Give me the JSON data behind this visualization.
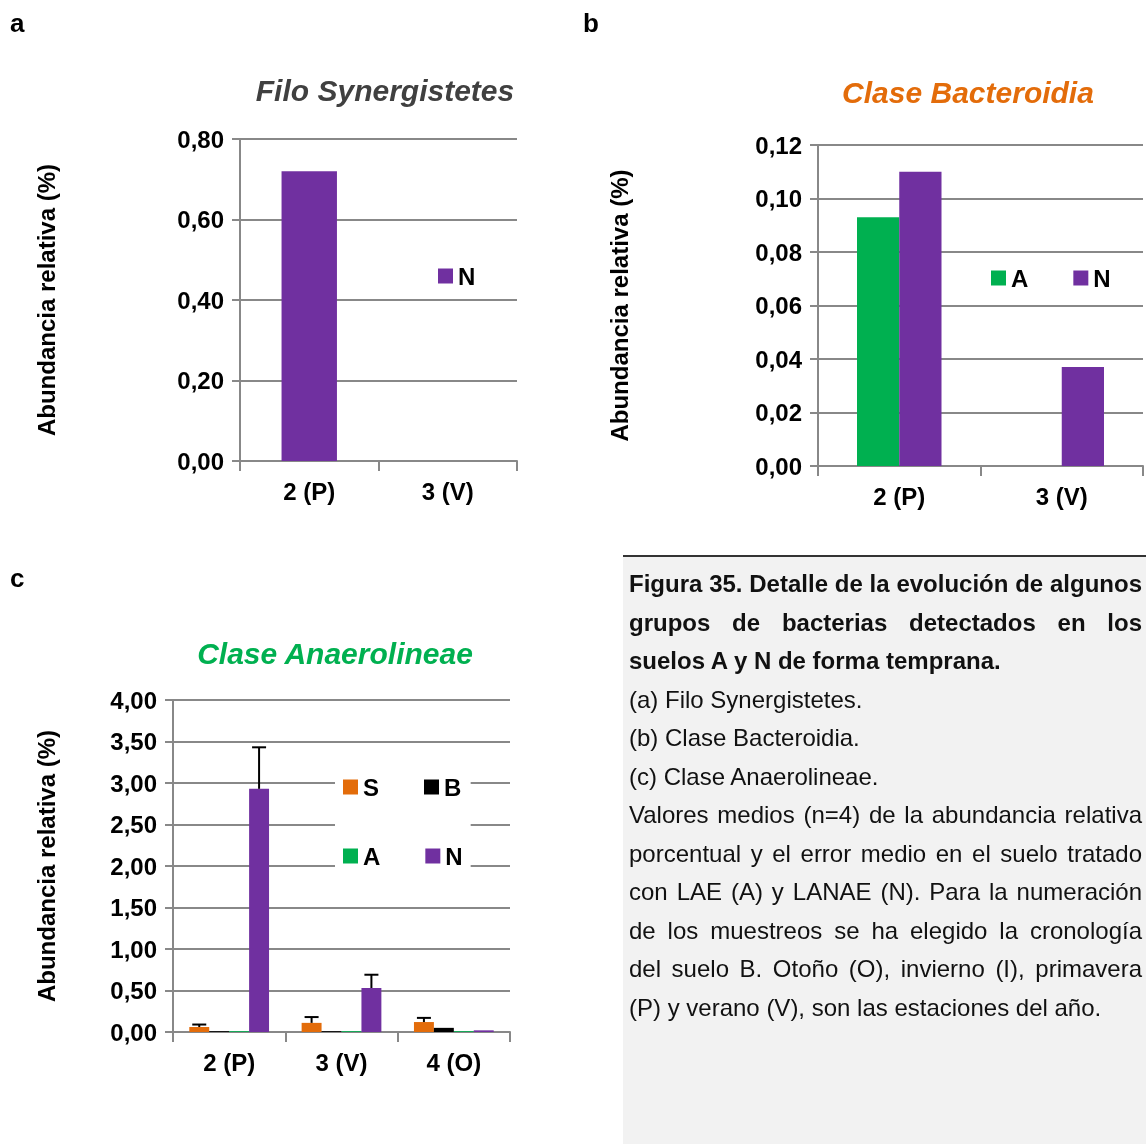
{
  "chart_data": [
    {
      "type": "bar",
      "title": "Filo Synergistetes",
      "ylabel": "Abundancia relativa (%)",
      "annotations": [
        "a"
      ],
      "categories": [
        "2 (P)",
        "3 (V)"
      ],
      "series": [
        {
          "name": "N",
          "color": "#7030a0",
          "values": [
            0.72,
            0
          ]
        }
      ],
      "ylim": [
        0,
        0.8
      ],
      "yticks": [
        {
          "value": 0,
          "label": "0,00"
        },
        {
          "value": 0.2,
          "label": "0,20"
        },
        {
          "value": 0.4,
          "label": "0,40"
        },
        {
          "value": 0.6,
          "label": "0,60"
        },
        {
          "value": 0.8,
          "label": "0,80"
        }
      ],
      "grid": "y",
      "legend": "right"
    },
    {
      "type": "bar",
      "title": "Clase Bacteroidia",
      "ylabel": "Abundancia relativa (%)",
      "annotations": [
        "b"
      ],
      "categories": [
        "2 (P)",
        "3 (V)"
      ],
      "series": [
        {
          "name": "A",
          "color": "#00b050",
          "values": [
            0.093,
            0
          ]
        },
        {
          "name": "N",
          "color": "#7030a0",
          "values": [
            0.11,
            0.037
          ]
        }
      ],
      "ylim": [
        0,
        0.12
      ],
      "yticks": [
        {
          "value": 0,
          "label": "0,00"
        },
        {
          "value": 0.02,
          "label": "0,02"
        },
        {
          "value": 0.04,
          "label": "0,04"
        },
        {
          "value": 0.06,
          "label": "0,06"
        },
        {
          "value": 0.08,
          "label": "0,08"
        },
        {
          "value": 0.1,
          "label": "0,10"
        },
        {
          "value": 0.12,
          "label": "0,12"
        }
      ],
      "grid": "y",
      "legend": "right"
    },
    {
      "type": "bar",
      "title": "Clase Anaerolineae",
      "ylabel": "Abundancia relativa (%)",
      "annotations": [
        "c"
      ],
      "categories": [
        "2 (P)",
        "3 (V)",
        "4 (O)"
      ],
      "series": [
        {
          "name": "S",
          "color": "#e36c0a",
          "values": [
            0.06,
            0.11,
            0.12
          ],
          "errors": [
            [
              0.06,
              0.09
            ],
            [
              0.11,
              0.18
            ],
            [
              0.12,
              0.17
            ]
          ]
        },
        {
          "name": "B",
          "color": "#000000",
          "values": [
            0.01,
            0.01,
            0.05
          ]
        },
        {
          "name": "A",
          "color": "#00b050",
          "values": [
            0.01,
            0.01,
            0.01
          ]
        },
        {
          "name": "N",
          "color": "#7030a0",
          "values": [
            2.93,
            0.53,
            0.02
          ],
          "errors": [
            [
              2.93,
              3.43
            ],
            [
              0.53,
              0.69
            ],
            null
          ]
        }
      ],
      "ylim": [
        0,
        4
      ],
      "yticks": [
        {
          "value": 0,
          "label": "0,00"
        },
        {
          "value": 0.5,
          "label": "0,50"
        },
        {
          "value": 1,
          "label": "1,00"
        },
        {
          "value": 1.5,
          "label": "1,50"
        },
        {
          "value": 2,
          "label": "2,00"
        },
        {
          "value": 2.5,
          "label": "2,50"
        },
        {
          "value": 3,
          "label": "3,00"
        },
        {
          "value": 3.5,
          "label": "3,50"
        },
        {
          "value": 4,
          "label": "4,00"
        }
      ],
      "grid": "y",
      "legend": "right"
    },
    {
      "type": "other",
      "title": "Figura 35. Detalle de la evolución de algunos grupos de bacterias detectados en los suelos A y N de forma temprana.",
      "annotations": [
        "(a) Filo Synergistetes.",
        "(b) Clase Bacteroidia.",
        "(c) Clase Anaerolineae.",
        "Valores medios (n=4) de la abundancia relativa porcentual y el error medio en el suelo tratado con LAE (A) y LANAE (N). Para la numeración de los muestreos se ha elegido la cronología del suelo B. Otoño (O), invierno (I), primavera (P) y verano (V), son las estaciones del año."
      ]
    }
  ]
}
